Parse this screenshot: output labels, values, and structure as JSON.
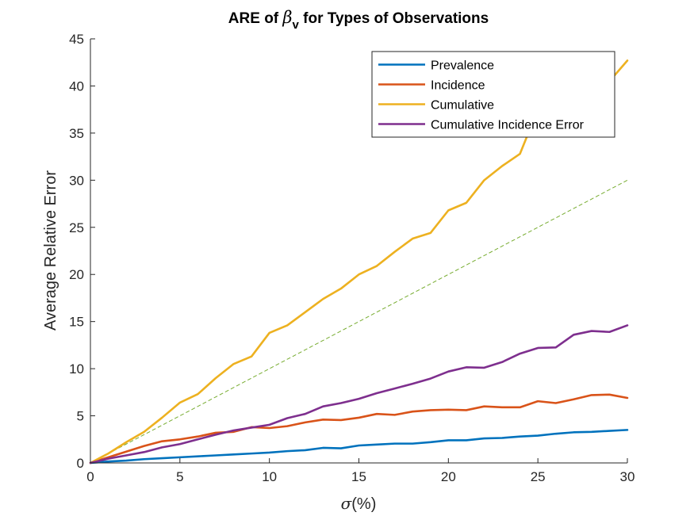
{
  "chart_data": {
    "type": "line",
    "title_prefix": "ARE of ",
    "title_symbol": "β",
    "title_subscript": "v",
    "title_suffix": " for Types of Observations",
    "xlabel_symbol": "σ",
    "xlabel_suffix": "(%)",
    "ylabel": "Average Relative Error",
    "xlim": [
      0,
      30
    ],
    "ylim": [
      0,
      45
    ],
    "xticks": [
      0,
      5,
      10,
      15,
      20,
      25,
      30
    ],
    "yticks": [
      0,
      5,
      10,
      15,
      20,
      25,
      30,
      35,
      40,
      45
    ],
    "grid": false,
    "legend_position": "top-right",
    "x": [
      0,
      1,
      2,
      3,
      4,
      5,
      6,
      7,
      8,
      9,
      10,
      11,
      12,
      13,
      14,
      15,
      16,
      17,
      18,
      19,
      20,
      21,
      22,
      23,
      24,
      25,
      26,
      27,
      28,
      29,
      30
    ],
    "series": [
      {
        "name": "Prevalence",
        "color": "#0072BD",
        "values": [
          0,
          0.15,
          0.25,
          0.4,
          0.5,
          0.6,
          0.7,
          0.8,
          0.9,
          1.0,
          1.1,
          1.25,
          1.35,
          1.6,
          1.55,
          1.85,
          1.95,
          2.05,
          2.05,
          2.2,
          2.4,
          2.4,
          2.6,
          2.65,
          2.8,
          2.9,
          3.1,
          3.25,
          3.3,
          3.4,
          3.5
        ]
      },
      {
        "name": "Incidence",
        "color": "#D95319",
        "values": [
          0,
          0.6,
          1.2,
          1.8,
          2.3,
          2.5,
          2.8,
          3.2,
          3.3,
          3.8,
          3.7,
          3.9,
          4.3,
          4.6,
          4.55,
          4.8,
          5.2,
          5.1,
          5.45,
          5.6,
          5.65,
          5.6,
          6.0,
          5.9,
          5.9,
          6.55,
          6.35,
          6.75,
          7.2,
          7.25,
          6.9
        ]
      },
      {
        "name": "Cumulative",
        "color": "#EDB120",
        "values": [
          0,
          1.0,
          2.2,
          3.3,
          4.8,
          6.4,
          7.3,
          9.0,
          10.5,
          11.3,
          13.8,
          14.6,
          16.0,
          17.4,
          18.5,
          20.0,
          20.9,
          22.4,
          23.8,
          24.4,
          26.8,
          27.6,
          30.0,
          31.5,
          32.8,
          37.5,
          38.0,
          39.0,
          39.8,
          40.5,
          42.7
        ]
      },
      {
        "name": "Cumulative Incidence Error",
        "color": "#7E2F8E",
        "values": [
          0,
          0.45,
          0.8,
          1.15,
          1.65,
          2.0,
          2.5,
          3.0,
          3.45,
          3.75,
          4.05,
          4.75,
          5.2,
          6.0,
          6.35,
          6.8,
          7.4,
          7.9,
          8.4,
          8.95,
          9.7,
          10.15,
          10.1,
          10.7,
          11.6,
          12.2,
          12.25,
          13.6,
          14.0,
          13.9,
          14.6
        ]
      }
    ],
    "reference_line": {
      "color": "#77AC30",
      "x": [
        0,
        30
      ],
      "y": [
        0,
        30
      ]
    }
  }
}
